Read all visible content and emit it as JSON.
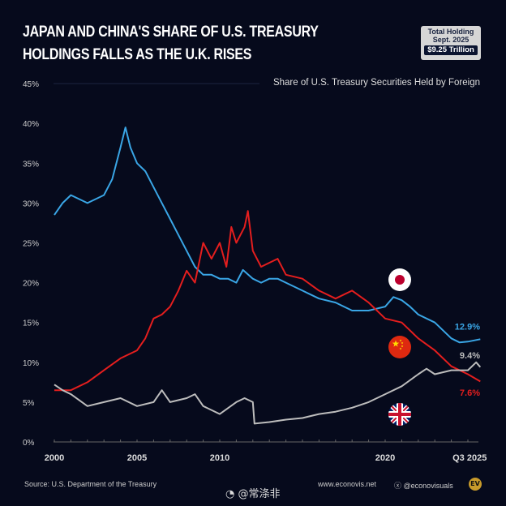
{
  "header": {
    "title_line1": "JAPAN AND CHINA'S SHARE OF U.S. TREASURY",
    "title_line2": "HOLDINGS FALLS AS THE U.K. RISES",
    "badge": {
      "line1": "Total Holding",
      "line2": "Sept. 2025",
      "value": "$9.25 Trillion"
    }
  },
  "footer": {
    "source": "Source: U.S. Department of the Treasury",
    "website": "www.econovis.net",
    "social": "@econovisuals",
    "logo": "EV",
    "watermark": "@常涤非"
  },
  "chart_data": {
    "type": "line",
    "title": "JAPAN AND CHINA'S SHARE OF U.S. TREASURY HOLDINGS FALLS AS THE U.K. RISES",
    "subtitle": "Share of U.S. Treasury Securities Held by Foreign",
    "xlim": [
      2000,
      2025.75
    ],
    "ylim": [
      0,
      45
    ],
    "yticks": [
      0,
      5,
      10,
      15,
      20,
      25,
      30,
      35,
      40,
      45
    ],
    "ytick_labels": [
      "0%",
      "5%",
      "10%",
      "15%",
      "20%",
      "25%",
      "30%",
      "35%",
      "40%",
      "45%"
    ],
    "xticks": [
      2000,
      2005,
      2010,
      2020,
      2025.6
    ],
    "xtick_labels": [
      "2000",
      "2005",
      "2010",
      "2020",
      "Q3 2025"
    ],
    "grid": false,
    "series": [
      {
        "flag": "japan",
        "color": "#3aa6e6",
        "end_label": "12.9%",
        "x": [
          2000,
          2000.5,
          2001,
          2001.5,
          2002,
          2002.5,
          2003,
          2003.5,
          2004,
          2004.3,
          2004.6,
          2005,
          2005.5,
          2006,
          2006.5,
          2007,
          2007.5,
          2008,
          2008.5,
          2009,
          2009.5,
          2010,
          2010.5,
          2011,
          2011.4,
          2012,
          2012.5,
          2013,
          2013.5,
          2014,
          2015,
          2016,
          2017,
          2018,
          2019,
          2020,
          2020.5,
          2021,
          2021.5,
          2022,
          2023,
          2024,
          2024.5,
          2025,
          2025.75
        ],
        "y": [
          28.5,
          30,
          31,
          30.5,
          30,
          30.5,
          31,
          33,
          37,
          39.5,
          37,
          35,
          34,
          32,
          30,
          28,
          26,
          24,
          22,
          21,
          21,
          20.5,
          20.5,
          20,
          21.6,
          20.5,
          20,
          20.5,
          20.5,
          20,
          19,
          18,
          17.5,
          16.5,
          16.5,
          17,
          18.2,
          17.8,
          17,
          16,
          15,
          13,
          12.5,
          12.6,
          12.9
        ]
      },
      {
        "flag": "china",
        "color": "#e41e1e",
        "end_label": "7.6%",
        "x": [
          2000,
          2001,
          2002,
          2003,
          2004,
          2005,
          2005.5,
          2006,
          2006.5,
          2007,
          2007.5,
          2008,
          2008.5,
          2009,
          2009.5,
          2010,
          2010.4,
          2010.7,
          2011,
          2011.5,
          2011.7,
          2012,
          2012.5,
          2013,
          2013.5,
          2014,
          2015,
          2016,
          2017,
          2018,
          2019,
          2020,
          2021,
          2022,
          2023,
          2024,
          2025,
          2025.75
        ],
        "y": [
          6.5,
          6.5,
          7.5,
          9,
          10.5,
          11.5,
          13,
          15.5,
          16,
          17,
          19,
          21.5,
          20,
          25,
          23,
          25,
          22,
          27,
          25,
          27,
          29,
          24,
          22,
          22.5,
          23,
          21,
          20.5,
          19,
          18,
          19,
          17.5,
          15.5,
          15,
          13,
          11.5,
          9.5,
          8.5,
          7.6
        ]
      },
      {
        "flag": "uk",
        "color": "#bdbdbd",
        "end_label": "9.4%",
        "x": [
          2000,
          2000.5,
          2001,
          2002,
          2003,
          2004,
          2005,
          2006,
          2006.5,
          2007,
          2008,
          2008.5,
          2009,
          2010,
          2011,
          2011.5,
          2012,
          2012.1,
          2013,
          2014,
          2015,
          2016,
          2017,
          2018,
          2019,
          2020,
          2021,
          2022,
          2022.5,
          2023,
          2024,
          2025,
          2025.5,
          2025.75
        ],
        "y": [
          7.2,
          6.5,
          6,
          4.5,
          5,
          5.5,
          4.5,
          5,
          6.5,
          5,
          5.5,
          6,
          4.5,
          3.5,
          5,
          5.5,
          5,
          2.3,
          2.5,
          2.8,
          3,
          3.5,
          3.8,
          4.3,
          5,
          6,
          7,
          8.5,
          9.2,
          8.5,
          9,
          9,
          10,
          9.4
        ]
      }
    ]
  }
}
